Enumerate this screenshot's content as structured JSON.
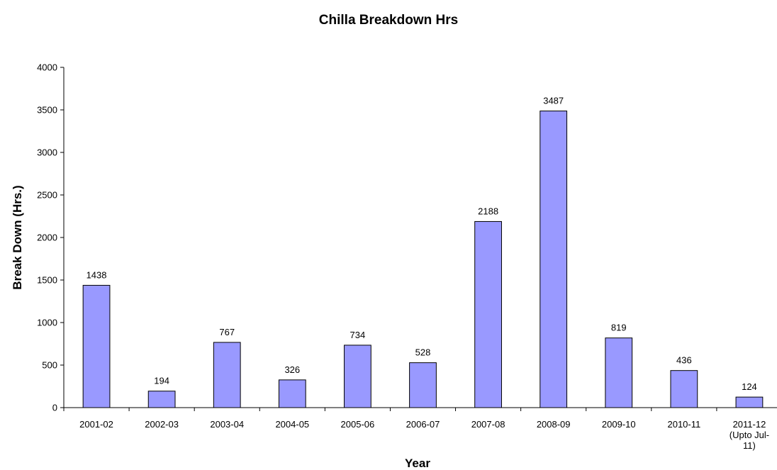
{
  "chart_data": {
    "type": "bar",
    "title": "Chilla Breakdown Hrs",
    "xlabel": "Year",
    "ylabel": "Break Down (Hrs.)",
    "categories": [
      "2001-02",
      "2002-03",
      "2003-04",
      "2004-05",
      "2005-06",
      "2006-07",
      "2007-08",
      "2008-09",
      "2009-10",
      "2010-11",
      "2011-12 (Upto Jul-11)"
    ],
    "category_lines": [
      [
        "2001-02"
      ],
      [
        "2002-03"
      ],
      [
        "2003-04"
      ],
      [
        "2004-05"
      ],
      [
        "2005-06"
      ],
      [
        "2006-07"
      ],
      [
        "2007-08"
      ],
      [
        "2008-09"
      ],
      [
        "2009-10"
      ],
      [
        "2010-11"
      ],
      [
        "2011-12",
        "(Upto Jul-",
        "11)"
      ]
    ],
    "values": [
      1438,
      194,
      767,
      326,
      734,
      528,
      2188,
      3487,
      819,
      436,
      124
    ],
    "ylim": [
      0,
      4000
    ],
    "yticks": [
      0,
      500,
      1000,
      1500,
      2000,
      2500,
      3000,
      3500,
      4000
    ],
    "grid": false,
    "legend": "none",
    "colors": {
      "bar_fill": "#9999ff",
      "bar_stroke": "#000000",
      "axis": "#000000"
    }
  }
}
